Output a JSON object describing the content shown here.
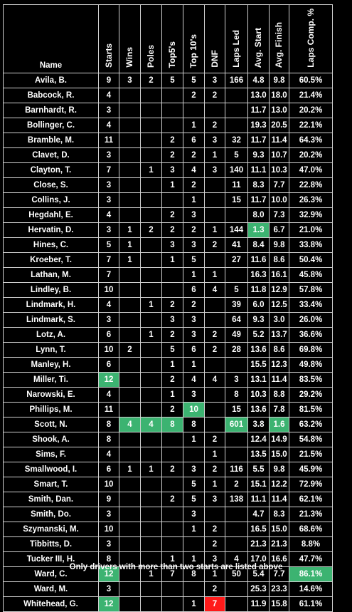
{
  "headers": [
    "Name",
    "Starts",
    "Wins",
    "Poles",
    "Top5's",
    "Top 10's",
    "DNF",
    "Laps Led",
    "Avg. Start",
    "Avg. Finish",
    "Laps Comp. %"
  ],
  "rows": [
    [
      "Avila, B.",
      "9",
      "3",
      "2",
      "5",
      "5",
      "3",
      "166",
      "4.8",
      "9.8",
      "60.5%"
    ],
    [
      "Babcock, R.",
      "4",
      "",
      "",
      "",
      "2",
      "2",
      "",
      "13.0",
      "18.0",
      "21.4%"
    ],
    [
      "Barnhardt, R.",
      "3",
      "",
      "",
      "",
      "",
      "",
      "",
      "11.7",
      "13.0",
      "20.2%"
    ],
    [
      "Bollinger, C.",
      "4",
      "",
      "",
      "",
      "1",
      "2",
      "",
      "19.3",
      "20.5",
      "22.1%"
    ],
    [
      "Bramble, M.",
      "11",
      "",
      "",
      "2",
      "6",
      "3",
      "32",
      "11.7",
      "11.4",
      "64.3%"
    ],
    [
      "Clavet, D.",
      "3",
      "",
      "",
      "2",
      "2",
      "1",
      "5",
      "9.3",
      "10.7",
      "20.2%"
    ],
    [
      "Clayton, T.",
      "7",
      "",
      "1",
      "3",
      "4",
      "3",
      "140",
      "11.1",
      "10.3",
      "47.0%"
    ],
    [
      "Close, S.",
      "3",
      "",
      "",
      "1",
      "2",
      "",
      "11",
      "8.3",
      "7.7",
      "22.8%"
    ],
    [
      "Collins, J.",
      "3",
      "",
      "",
      "",
      "1",
      "",
      "15",
      "11.7",
      "10.0",
      "26.3%"
    ],
    [
      "Hegdahl, E.",
      "4",
      "",
      "",
      "2",
      "3",
      "",
      "",
      "8.0",
      "7.3",
      "32.9%"
    ],
    [
      "Hervatin, D.",
      "3",
      "1",
      "2",
      "2",
      "2",
      "1",
      "144",
      "1.3",
      "6.7",
      "21.0%"
    ],
    [
      "Hines, C.",
      "5",
      "1",
      "",
      "3",
      "3",
      "2",
      "41",
      "8.4",
      "9.8",
      "33.8%"
    ],
    [
      "Kroeber, T.",
      "7",
      "1",
      "",
      "1",
      "5",
      "",
      "27",
      "11.6",
      "8.6",
      "50.4%"
    ],
    [
      "Lathan, M.",
      "7",
      "",
      "",
      "",
      "1",
      "1",
      "",
      "16.3",
      "16.1",
      "45.8%"
    ],
    [
      "Lindley, B.",
      "10",
      "",
      "",
      "",
      "6",
      "4",
      "5",
      "11.8",
      "12.9",
      "57.8%"
    ],
    [
      "Lindmark, H.",
      "4",
      "",
      "1",
      "2",
      "2",
      "",
      "39",
      "6.0",
      "12.5",
      "33.4%"
    ],
    [
      "Lindmark, S.",
      "3",
      "",
      "",
      "3",
      "3",
      "",
      "64",
      "9.3",
      "3.0",
      "26.0%"
    ],
    [
      "Lotz, A.",
      "6",
      "",
      "1",
      "2",
      "3",
      "2",
      "49",
      "5.2",
      "13.7",
      "36.6%"
    ],
    [
      "Lynn, T.",
      "10",
      "2",
      "",
      "5",
      "6",
      "2",
      "28",
      "13.6",
      "8.6",
      "69.8%"
    ],
    [
      "Manley, H.",
      "6",
      "",
      "",
      "1",
      "1",
      "",
      "",
      "15.5",
      "12.3",
      "49.8%"
    ],
    [
      "Miller, Ti.",
      "12",
      "",
      "",
      "2",
      "4",
      "4",
      "3",
      "13.1",
      "11.4",
      "83.5%"
    ],
    [
      "Narowski, E.",
      "4",
      "",
      "",
      "1",
      "3",
      "",
      "8",
      "10.3",
      "8.8",
      "29.2%"
    ],
    [
      "Phillips, M.",
      "11",
      "",
      "",
      "2",
      "10",
      "",
      "15",
      "13.6",
      "7.8",
      "81.5%"
    ],
    [
      "Scott, N.",
      "8",
      "4",
      "4",
      "8",
      "8",
      "",
      "601",
      "3.8",
      "1.6",
      "63.2%"
    ],
    [
      "Shook, A.",
      "8",
      "",
      "",
      "",
      "1",
      "2",
      "",
      "12.4",
      "14.9",
      "54.8%"
    ],
    [
      "Sims, F.",
      "4",
      "",
      "",
      "",
      "",
      "1",
      "",
      "13.5",
      "15.0",
      "21.5%"
    ],
    [
      "Smallwood, I.",
      "6",
      "1",
      "1",
      "2",
      "3",
      "2",
      "116",
      "5.5",
      "9.8",
      "45.9%"
    ],
    [
      "Smart, T.",
      "10",
      "",
      "",
      "",
      "5",
      "1",
      "2",
      "15.1",
      "12.2",
      "72.9%"
    ],
    [
      "Smith, Dan.",
      "9",
      "",
      "",
      "2",
      "5",
      "3",
      "138",
      "11.1",
      "11.4",
      "62.1%"
    ],
    [
      "Smith, Do.",
      "3",
      "",
      "",
      "",
      "3",
      "",
      "",
      "4.7",
      "8.3",
      "21.3%"
    ],
    [
      "Szymanski, M.",
      "10",
      "",
      "",
      "",
      "1",
      "2",
      "",
      "16.5",
      "15.0",
      "68.6%"
    ],
    [
      "Tibbitts, D.",
      "3",
      "",
      "",
      "",
      "",
      "2",
      "",
      "21.3",
      "21.3",
      "8.8%"
    ],
    [
      "Tucker III, H.",
      "8",
      "",
      "",
      "1",
      "1",
      "3",
      "4",
      "17.0",
      "16.6",
      "47.7%"
    ],
    [
      "Ward, C.",
      "12",
      "",
      "1",
      "7",
      "8",
      "1",
      "50",
      "5.4",
      "7.7",
      "86.1%"
    ],
    [
      "Ward, M.",
      "3",
      "",
      "",
      "",
      "",
      "2",
      "",
      "25.3",
      "23.3",
      "14.6%"
    ],
    [
      "Whitehead, G.",
      "12",
      "",
      "",
      "",
      "1",
      "7",
      "",
      "11.9",
      "15.8",
      "61.1%"
    ]
  ],
  "highlights": [
    {
      "row": 10,
      "col": 8,
      "color": "#3cb371"
    },
    {
      "row": 20,
      "col": 1,
      "color": "#3cb371"
    },
    {
      "row": 22,
      "col": 5,
      "color": "#3cb371"
    },
    {
      "row": 23,
      "col": 2,
      "color": "#3cb371"
    },
    {
      "row": 23,
      "col": 3,
      "color": "#3cb371"
    },
    {
      "row": 23,
      "col": 4,
      "color": "#3cb371"
    },
    {
      "row": 23,
      "col": 7,
      "color": "#3cb371"
    },
    {
      "row": 23,
      "col": 9,
      "color": "#3cb371"
    },
    {
      "row": 33,
      "col": 1,
      "color": "#3cb371"
    },
    {
      "row": 33,
      "col": 10,
      "color": "#3cb371"
    },
    {
      "row": 35,
      "col": 1,
      "color": "#3cb371"
    },
    {
      "row": 35,
      "col": 6,
      "color": "#ff1a1a"
    }
  ],
  "footer": "Only drivers with more than two starts are listed above"
}
